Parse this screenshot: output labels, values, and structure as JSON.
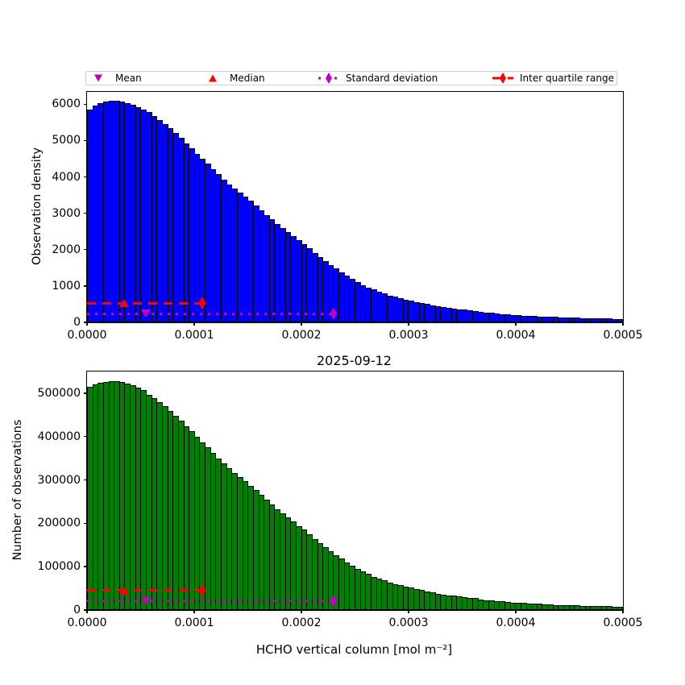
{
  "figure": {
    "title": "2025-09-12",
    "background": "#ffffff"
  },
  "legend": {
    "items": [
      {
        "label": "Mean",
        "marker": "triangle-down",
        "color": "#bf00bf"
      },
      {
        "label": "Median",
        "marker": "triangle-up",
        "color": "#ff0000"
      },
      {
        "label": "Standard deviation",
        "marker": "thin-diamond-dotted-line",
        "color": "#bf00bf"
      },
      {
        "label": "Inter quartile range",
        "marker": "thin-diamond-dashed-line",
        "color": "#ff0000"
      }
    ]
  },
  "chart_data": [
    {
      "type": "bar",
      "subtype": "histogram",
      "ylabel": "Observation density",
      "xlabel": "",
      "bar_color": "#0000ff",
      "edge_color": "#000000",
      "bin_start": 0,
      "bin_width": 5e-06,
      "n_bins": 100,
      "xlim": [
        0,
        0.0005
      ],
      "ylim": [
        0,
        6340
      ],
      "xticks": [
        0,
        0.0001,
        0.0002,
        0.0003,
        0.0004,
        0.0005
      ],
      "yticks": [
        0,
        1000,
        2000,
        3000,
        4000,
        5000,
        6000
      ],
      "values": [
        5860,
        5970,
        6040,
        6080,
        6100,
        6100,
        6080,
        6040,
        5990,
        5930,
        5860,
        5780,
        5680,
        5570,
        5460,
        5340,
        5210,
        5070,
        4930,
        4790,
        4640,
        4500,
        4360,
        4210,
        4070,
        3930,
        3800,
        3680,
        3560,
        3450,
        3340,
        3210,
        3080,
        2950,
        2830,
        2710,
        2590,
        2480,
        2370,
        2260,
        2150,
        2030,
        1910,
        1800,
        1690,
        1580,
        1480,
        1380,
        1280,
        1190,
        1100,
        1030,
        960,
        900,
        840,
        790,
        740,
        700,
        665,
        630,
        600,
        565,
        530,
        500,
        470,
        445,
        420,
        395,
        380,
        365,
        350,
        330,
        310,
        290,
        272,
        258,
        245,
        230,
        215,
        200,
        190,
        182,
        175,
        168,
        161,
        155,
        150,
        145,
        140,
        135,
        130,
        126,
        122,
        118,
        114,
        110,
        106,
        102,
        98,
        95
      ],
      "stat_lines": {
        "iqr": {
          "label": "Inter quartile range",
          "color": "#ff0000",
          "style": "dashed",
          "x_start": 0,
          "x_end": 0.0001075,
          "y": 530,
          "diamond_x": 0.0001075,
          "median_marker_x": 3.45e-05
        },
        "std": {
          "label": "Standard deviation",
          "color": "#bf00bf",
          "style": "dotted",
          "x_start": 0,
          "x_end": 0.00023,
          "y": 240,
          "diamond_x": 0.00023,
          "mean_marker_x": 5.5e-05
        }
      },
      "stats": {
        "mean": 5.5e-05,
        "median": 3.45e-05,
        "std_dev": 0.00023,
        "iqr_upper": 0.0001075
      }
    },
    {
      "type": "bar",
      "subtype": "histogram",
      "ylabel": "Number of observations",
      "xlabel": "HCHO vertical column [mol m⁻²]",
      "bar_color": "#008000",
      "edge_color": "#000000",
      "bin_start": 0,
      "bin_width": 5e-06,
      "n_bins": 100,
      "xlim": [
        0,
        0.0005
      ],
      "ylim": [
        0,
        550000
      ],
      "xticks": [
        0,
        0.0001,
        0.0002,
        0.0003,
        0.0004,
        0.0005
      ],
      "yticks": [
        0,
        100000,
        200000,
        300000,
        400000,
        500000
      ],
      "values": [
        515000,
        521000,
        524000,
        526000,
        527000,
        527000,
        525000,
        522000,
        518000,
        513000,
        507000,
        497000,
        489000,
        479000,
        470000,
        459000,
        448000,
        436000,
        424000,
        412000,
        399000,
        387000,
        375000,
        362000,
        350000,
        338000,
        327000,
        316000,
        306000,
        297000,
        287000,
        276000,
        265000,
        254000,
        243000,
        233000,
        223000,
        213000,
        204000,
        194000,
        185000,
        175000,
        164000,
        155000,
        145000,
        136000,
        127000,
        119000,
        110000,
        102000,
        95000,
        89000,
        83000,
        77000,
        72000,
        68000,
        64000,
        60000,
        57000,
        54000,
        52000,
        49000,
        46000,
        43000,
        40000,
        38000,
        36000,
        34000,
        33000,
        31000,
        30000,
        28000,
        27000,
        25000,
        23000,
        22000,
        21000,
        20000,
        18000,
        17000,
        16000,
        16000,
        15000,
        14000,
        14000,
        13000,
        13000,
        12000,
        12000,
        12000,
        11000,
        11000,
        10000,
        10000,
        10000,
        9000,
        9000,
        9000,
        8000,
        8000
      ],
      "stat_lines": {
        "iqr": {
          "label": "Inter quartile range",
          "color": "#ff0000",
          "style": "dashed",
          "x_start": 0,
          "x_end": 0.0001075,
          "y": 45000,
          "diamond_x": 0.0001075,
          "median_marker_x": 3.45e-05
        },
        "std": {
          "label": "Standard deviation",
          "color": "#bf00bf",
          "style": "dotted",
          "x_start": 0,
          "x_end": 0.00023,
          "y": 20500,
          "diamond_x": 0.00023,
          "mean_marker_x": 5.5e-05
        }
      },
      "stats": {
        "mean": 5.5e-05,
        "median": 3.45e-05,
        "std_dev": 0.00023,
        "iqr_upper": 0.0001075
      }
    }
  ]
}
